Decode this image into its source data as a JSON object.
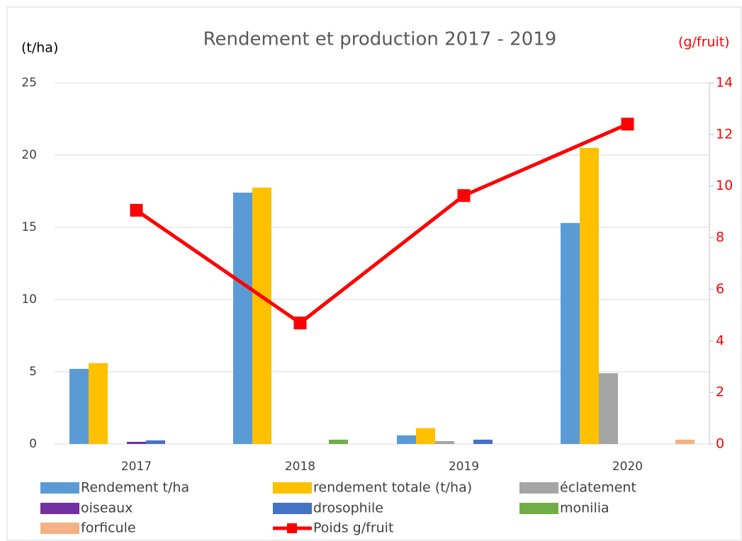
{
  "chart_data": {
    "type": "bar",
    "title": "Rendement et production 2017 - 2019",
    "y_label": "(t/ha)",
    "y2_label": "(g/fruit)",
    "categories": [
      "2017",
      "2018",
      "2019",
      "2020"
    ],
    "series": [
      {
        "name": "Rendement t/ha",
        "color": "#5b9bd5",
        "values": [
          5.2,
          17.4,
          0.6,
          15.3
        ]
      },
      {
        "name": "rendement totale (t/ha)",
        "color": "#ffc000",
        "values": [
          5.6,
          17.75,
          1.1,
          20.5
        ]
      },
      {
        "name": "éclatement",
        "color": "#a5a5a5",
        "values": [
          0,
          0,
          0.2,
          4.9
        ]
      },
      {
        "name": "oiseaux",
        "color": "#7030a0",
        "values": [
          0.15,
          0,
          0,
          0
        ]
      },
      {
        "name": "drosophile",
        "color": "#4472c4",
        "values": [
          0.25,
          0,
          0.3,
          0
        ]
      },
      {
        "name": "monilia",
        "color": "#70ad47",
        "values": [
          0,
          0.3,
          0,
          0
        ]
      },
      {
        "name": "forficule",
        "color": "#f4b183",
        "values": [
          0,
          0,
          0,
          0.3
        ]
      },
      {
        "name": "Poids g/fruit",
        "color": "#ff0000",
        "type": "line",
        "axis": "y2",
        "values": [
          9.06,
          4.69,
          9.63,
          12.4
        ]
      }
    ],
    "ylim": [
      0,
      25
    ],
    "yticks": [
      0,
      5,
      10,
      15,
      20,
      25
    ],
    "y2lim": [
      0,
      14
    ],
    "y2ticks": [
      0,
      2,
      4,
      6,
      8,
      10,
      12,
      14
    ],
    "grid": true,
    "legend": "bottom"
  }
}
